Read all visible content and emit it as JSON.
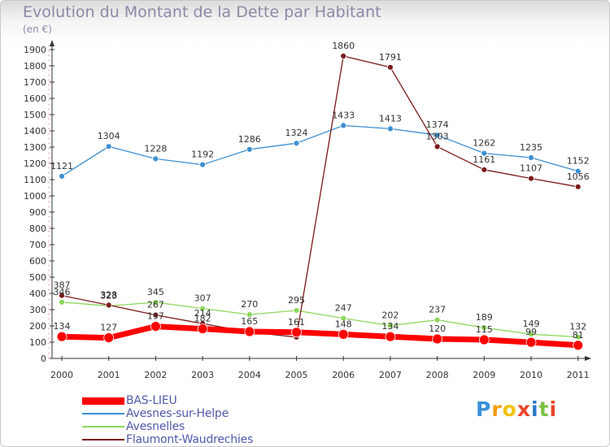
{
  "title": "Evolution du Montant de la Dette par Habitant",
  "unit": "(en €)",
  "logo": {
    "letters": [
      "P",
      "r",
      "o",
      "x",
      "i",
      "t",
      "i"
    ],
    "colors": [
      "#3b8fd6",
      "#f39c12",
      "#f4c20d",
      "#e8452c",
      "#2c77c8",
      "#7cc043",
      "#e8452c"
    ]
  },
  "chart_data": {
    "type": "line",
    "title": "Evolution du Montant de la Dette par Habitant",
    "ylabel": "(en €)",
    "xlabel": "",
    "x": [
      "2000",
      "2001",
      "2002",
      "2003",
      "2004",
      "2005",
      "2006",
      "2007",
      "2008",
      "2009",
      "2010",
      "2011"
    ],
    "ylim": [
      0,
      1900
    ],
    "yticks": [
      0,
      100,
      200,
      300,
      400,
      500,
      600,
      700,
      800,
      900,
      1000,
      1100,
      1200,
      1300,
      1400,
      1500,
      1600,
      1700,
      1800,
      1900
    ],
    "grid": false,
    "legend": "bottom-left",
    "series": [
      {
        "name": "BAS-LIEU",
        "color": "#ff0000",
        "values": [
          134,
          127,
          197,
          182,
          165,
          161,
          148,
          134,
          120,
          115,
          99,
          81
        ],
        "labels": [
          "134",
          "127",
          "197",
          "182",
          "165",
          "161",
          "148",
          "134",
          "120",
          "115",
          "99",
          "81"
        ]
      },
      {
        "name": "Avesnes-sur-Helpe",
        "color": "#3d8fd1",
        "values": [
          1121,
          1304,
          1228,
          1192,
          1286,
          1324,
          1433,
          1413,
          1374,
          1262,
          1235,
          1152
        ],
        "labels": [
          "1121",
          "1304",
          "1228",
          "1192",
          "1286",
          "1324",
          "1433",
          "1413",
          "1374",
          "1262",
          "1235",
          "1152"
        ]
      },
      {
        "name": "Avesnelles",
        "color": "#8ed65a",
        "values": [
          346,
          323,
          345,
          307,
          270,
          295,
          247,
          202,
          237,
          189,
          149,
          132
        ],
        "labels": [
          "346",
          "323",
          "345",
          "307",
          "270",
          "295",
          "247",
          "202",
          "237",
          "189",
          "149",
          "132"
        ]
      },
      {
        "name": "Flaumont-Waudrechies",
        "color": "#7a1a1a",
        "values": [
          387,
          328,
          267,
          214,
          162,
          131,
          1860,
          1791,
          1303,
          1161,
          1107,
          1056
        ],
        "labels": [
          "387",
          "328",
          "267",
          "214",
          "",
          "",
          "1860",
          "1791",
          "1303",
          "1161",
          "1107",
          "1056"
        ]
      }
    ]
  }
}
